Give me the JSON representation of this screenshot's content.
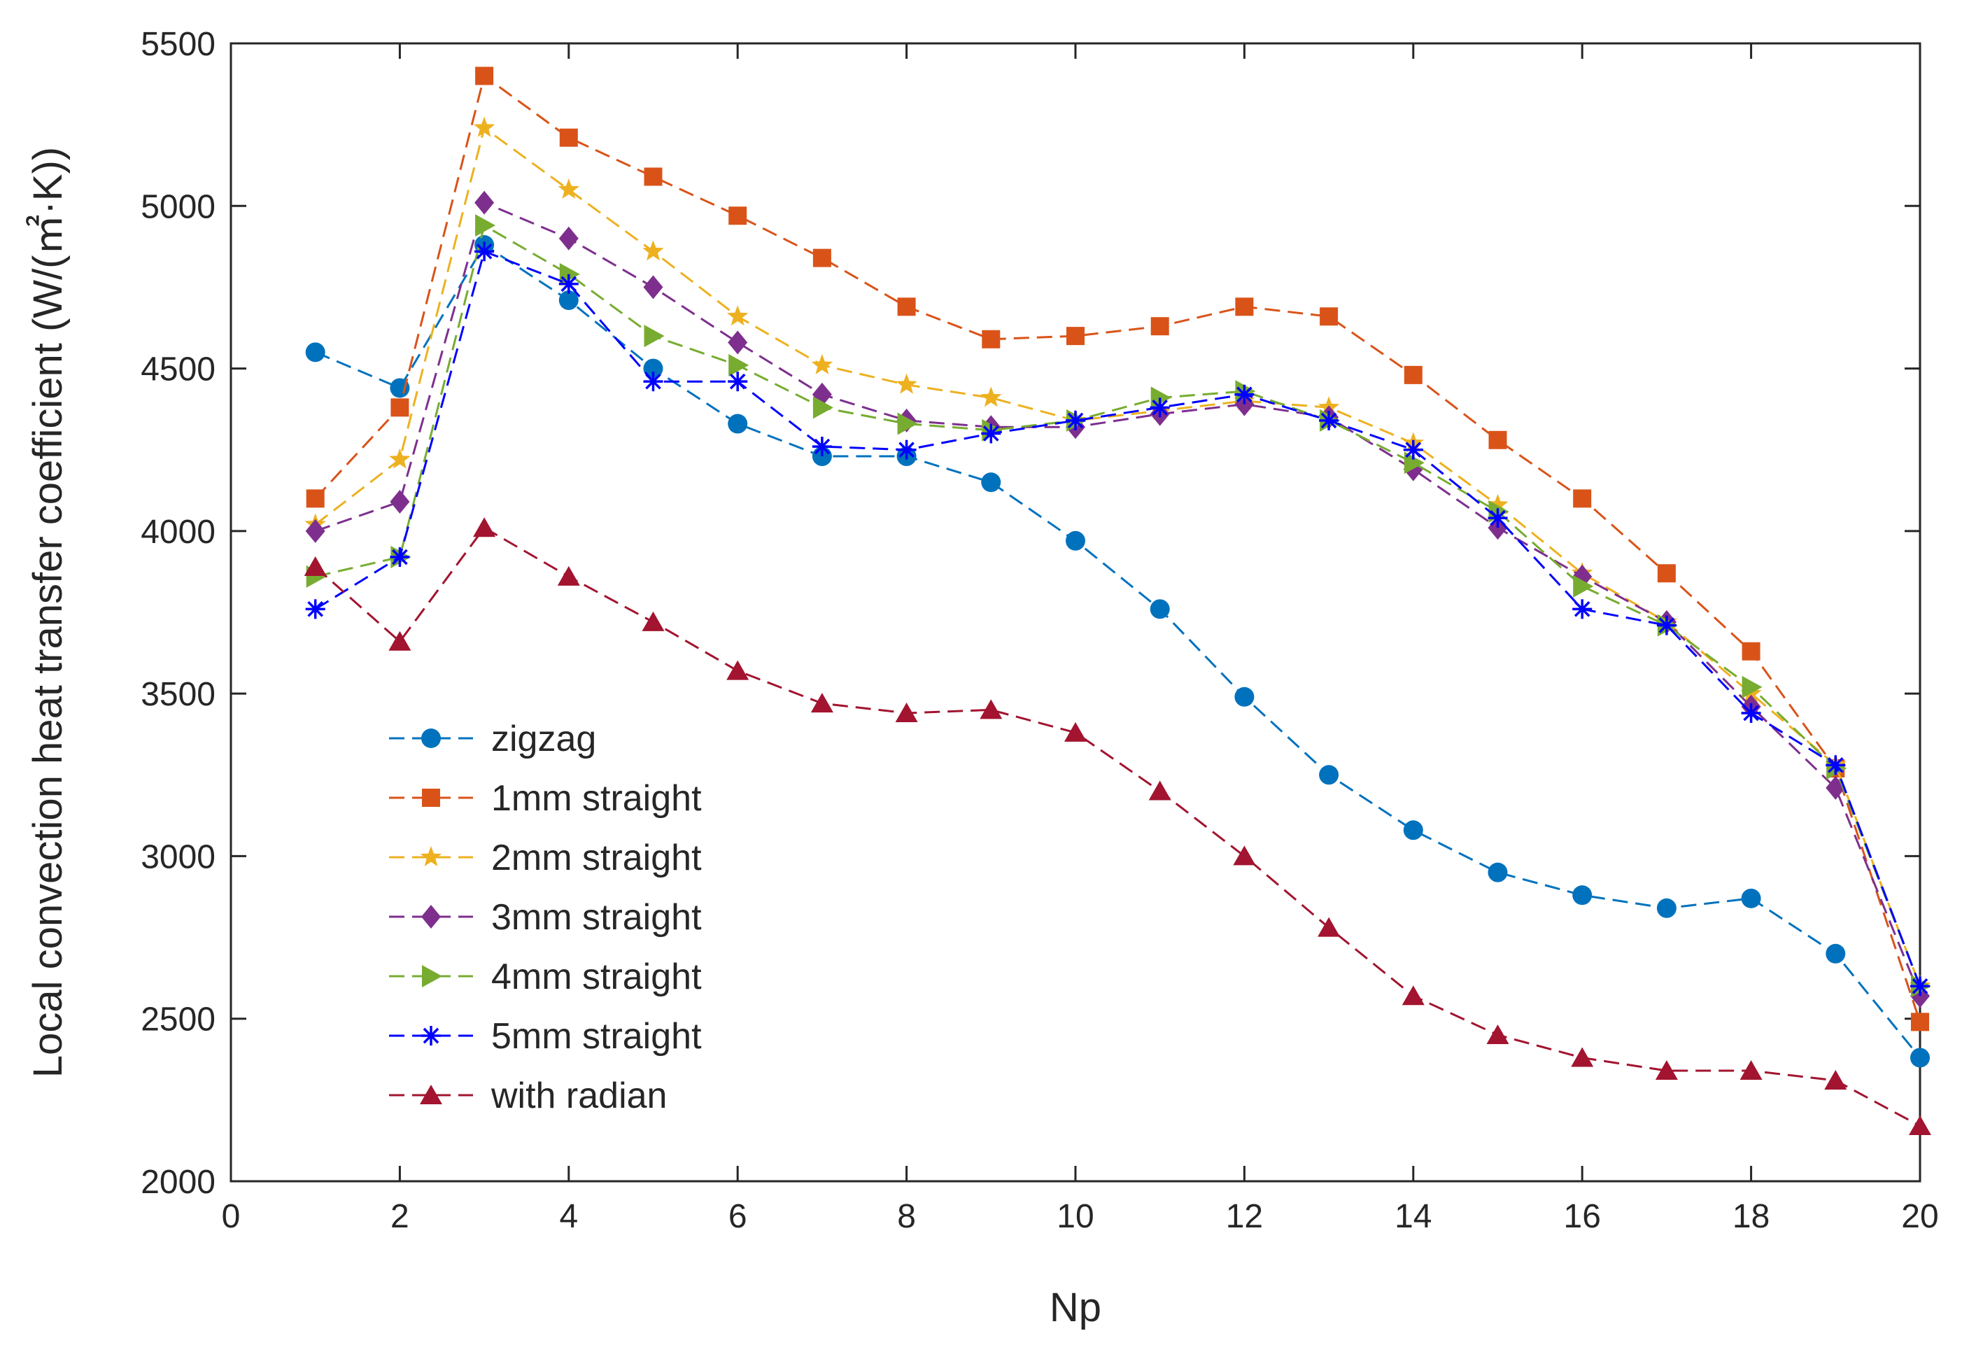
{
  "chart_data": {
    "type": "line",
    "xlabel": "Np",
    "ylabel": "Local convection heat transfer coefficient (W/(㎡·K))",
    "xlim": [
      0,
      20
    ],
    "ylim": [
      2000,
      5500
    ],
    "xticks": [
      0,
      2,
      4,
      6,
      8,
      10,
      12,
      14,
      16,
      18,
      20
    ],
    "yticks": [
      2000,
      2500,
      3000,
      3500,
      4000,
      4500,
      5000,
      5500
    ],
    "grid": false,
    "legend_position": "bottom-left",
    "x": [
      1,
      2,
      3,
      4,
      5,
      6,
      7,
      8,
      9,
      10,
      11,
      12,
      13,
      14,
      15,
      16,
      17,
      18,
      19,
      20
    ],
    "series": [
      {
        "name": "zigzag",
        "color": "#0072BD",
        "marker": "circle",
        "values": [
          4550,
          4440,
          4880,
          4710,
          4500,
          4330,
          4230,
          4230,
          4150,
          3970,
          3760,
          3490,
          3250,
          3080,
          2950,
          2880,
          2840,
          2870,
          2700,
          2380
        ]
      },
      {
        "name": "1mm straight",
        "color": "#D95319",
        "marker": "square",
        "values": [
          4100,
          4380,
          5400,
          5210,
          5090,
          4970,
          4840,
          4690,
          4590,
          4600,
          4630,
          4690,
          4660,
          4480,
          4280,
          4100,
          3870,
          3630,
          3270,
          2490
        ]
      },
      {
        "name": "2mm straight",
        "color": "#EDB120",
        "marker": "star",
        "values": [
          4020,
          4220,
          5240,
          5050,
          4860,
          4660,
          4510,
          4450,
          4410,
          4340,
          4370,
          4400,
          4380,
          4270,
          4080,
          3870,
          3720,
          3500,
          3280,
          2600
        ]
      },
      {
        "name": "3mm straight",
        "color": "#7E2F8E",
        "marker": "diamond",
        "values": [
          4000,
          4090,
          5010,
          4900,
          4750,
          4580,
          4420,
          4340,
          4320,
          4320,
          4360,
          4390,
          4350,
          4190,
          4010,
          3860,
          3720,
          3460,
          3210,
          2570
        ]
      },
      {
        "name": "4mm straight",
        "color": "#77AC30",
        "marker": "triangle-right",
        "values": [
          3860,
          3920,
          4940,
          4790,
          4600,
          4510,
          4380,
          4330,
          4310,
          4340,
          4410,
          4430,
          4340,
          4210,
          4060,
          3830,
          3710,
          3520,
          3270,
          2600
        ]
      },
      {
        "name": "5mm straight",
        "color": "#0000FF",
        "marker": "asterisk",
        "values": [
          3760,
          3920,
          4860,
          4760,
          4460,
          4460,
          4260,
          4250,
          4300,
          4340,
          4380,
          4420,
          4340,
          4250,
          4040,
          3760,
          3710,
          3440,
          3280,
          2600
        ]
      },
      {
        "name": "with radian",
        "color": "#A2142F",
        "marker": "triangle-up",
        "values": [
          3890,
          3660,
          4010,
          3860,
          3720,
          3570,
          3470,
          3440,
          3450,
          3380,
          3200,
          3000,
          2780,
          2570,
          2450,
          2380,
          2340,
          2340,
          2310,
          2170
        ]
      }
    ]
  }
}
